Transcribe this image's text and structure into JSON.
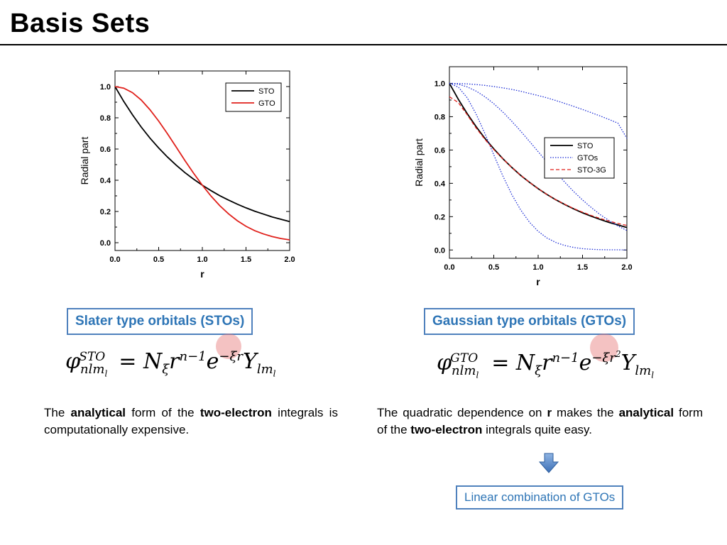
{
  "title": "Basis Sets",
  "colors": {
    "sto": "#000000",
    "gto_red": "#e0201b",
    "gtos_blue": "#1e2fd6",
    "sto3g": "#e0201b",
    "accent": "#2e75b6"
  },
  "chart_data": [
    {
      "type": "line",
      "xlabel": "r",
      "ylabel": "Radial part",
      "xlim": [
        0.0,
        2.0
      ],
      "ylim": [
        -0.05,
        1.1
      ],
      "xticks": [
        "0.0",
        "0.5",
        "1.0",
        "1.5",
        "2.0"
      ],
      "yticks": [
        "0.0",
        "0.2",
        "0.4",
        "0.6",
        "0.8",
        "1.0"
      ],
      "legend_position": "top-right",
      "series": [
        {
          "name": "STO",
          "style": "solid",
          "color": "#000000",
          "x": [
            0,
            0.1,
            0.2,
            0.3,
            0.4,
            0.5,
            0.6,
            0.7,
            0.8,
            0.9,
            1.0,
            1.1,
            1.2,
            1.3,
            1.4,
            1.5,
            1.6,
            1.7,
            1.8,
            1.9,
            2.0
          ],
          "y": [
            1.0,
            0.905,
            0.819,
            0.741,
            0.67,
            0.607,
            0.549,
            0.497,
            0.449,
            0.407,
            0.368,
            0.333,
            0.301,
            0.273,
            0.247,
            0.223,
            0.202,
            0.183,
            0.165,
            0.15,
            0.135
          ]
        },
        {
          "name": "GTO",
          "style": "solid",
          "color": "#e0201b",
          "x": [
            0,
            0.1,
            0.2,
            0.3,
            0.4,
            0.5,
            0.6,
            0.7,
            0.8,
            0.9,
            1.0,
            1.1,
            1.2,
            1.3,
            1.4,
            1.5,
            1.6,
            1.7,
            1.8,
            1.9,
            2.0
          ],
          "y": [
            1.0,
            0.99,
            0.961,
            0.914,
            0.852,
            0.779,
            0.698,
            0.613,
            0.527,
            0.445,
            0.368,
            0.298,
            0.237,
            0.185,
            0.141,
            0.105,
            0.077,
            0.056,
            0.039,
            0.027,
            0.018
          ]
        }
      ]
    },
    {
      "type": "line",
      "xlabel": "r",
      "ylabel": "Radial part",
      "xlim": [
        0.0,
        2.0
      ],
      "ylim": [
        -0.05,
        1.1
      ],
      "xticks": [
        "0.0",
        "0.5",
        "1.0",
        "1.5",
        "2.0"
      ],
      "yticks": [
        "0.0",
        "0.2",
        "0.4",
        "0.6",
        "0.8",
        "1.0"
      ],
      "legend_position": "center-right",
      "legend": [
        "STO",
        "GTOs",
        "STO-3G"
      ],
      "series": [
        {
          "name": "STO",
          "style": "solid",
          "color": "#000000",
          "x": [
            0,
            0.1,
            0.2,
            0.3,
            0.4,
            0.5,
            0.6,
            0.7,
            0.8,
            0.9,
            1.0,
            1.1,
            1.2,
            1.3,
            1.4,
            1.5,
            1.6,
            1.7,
            1.8,
            1.9,
            2.0
          ],
          "y": [
            1.0,
            0.905,
            0.819,
            0.741,
            0.67,
            0.607,
            0.549,
            0.497,
            0.449,
            0.407,
            0.368,
            0.333,
            0.301,
            0.273,
            0.247,
            0.223,
            0.202,
            0.183,
            0.165,
            0.15,
            0.135
          ]
        },
        {
          "name": "GTOs",
          "style": "dotted",
          "color": "#1e2fd6",
          "x": [
            0,
            0.1,
            0.2,
            0.3,
            0.4,
            0.5,
            0.6,
            0.7,
            0.8,
            0.9,
            1.0,
            1.1,
            1.2,
            1.3,
            1.4,
            1.5,
            1.6,
            1.7,
            1.8,
            1.9,
            2.0
          ],
          "y": [
            1.0,
            0.978,
            0.914,
            0.817,
            0.699,
            0.571,
            0.447,
            0.336,
            0.243,
            0.168,
            0.112,
            0.072,
            0.045,
            0.027,
            0.015,
            0.008,
            0.004,
            0.002,
            0.001,
            0.001,
            0.0
          ]
        },
        {
          "name": "GTOs",
          "style": "dotted",
          "color": "#1e2fd6",
          "x": [
            0,
            0.1,
            0.2,
            0.3,
            0.4,
            0.5,
            0.6,
            0.7,
            0.8,
            0.9,
            1.0,
            1.1,
            1.2,
            1.3,
            1.4,
            1.5,
            1.6,
            1.7,
            1.8,
            1.9,
            2.0
          ],
          "y": [
            1.0,
            0.995,
            0.979,
            0.954,
            0.92,
            0.878,
            0.829,
            0.774,
            0.715,
            0.653,
            0.59,
            0.527,
            0.466,
            0.407,
            0.351,
            0.3,
            0.254,
            0.212,
            0.176,
            0.144,
            0.117
          ]
        },
        {
          "name": "GTOs",
          "style": "dotted",
          "color": "#1e2fd6",
          "x": [
            0,
            0.1,
            0.2,
            0.3,
            0.4,
            0.5,
            0.6,
            0.7,
            0.8,
            0.9,
            1.0,
            1.1,
            1.2,
            1.3,
            1.4,
            1.5,
            1.6,
            1.7,
            1.8,
            1.9,
            2.0
          ],
          "y": [
            1.0,
            0.999,
            0.997,
            0.993,
            0.988,
            0.981,
            0.973,
            0.964,
            0.953,
            0.94,
            0.927,
            0.913,
            0.897,
            0.88,
            0.862,
            0.843,
            0.824,
            0.804,
            0.783,
            0.761,
            0.67
          ]
        },
        {
          "name": "STO-3G",
          "style": "dashed",
          "color": "#e0201b",
          "x": [
            0,
            0.1,
            0.2,
            0.3,
            0.4,
            0.5,
            0.6,
            0.7,
            0.8,
            0.9,
            1.0,
            1.1,
            1.2,
            1.3,
            1.4,
            1.5,
            1.6,
            1.7,
            1.8,
            1.9,
            2.0
          ],
          "y": [
            0.92,
            0.885,
            0.812,
            0.733,
            0.664,
            0.603,
            0.548,
            0.497,
            0.45,
            0.407,
            0.368,
            0.333,
            0.302,
            0.274,
            0.249,
            0.227,
            0.207,
            0.189,
            0.173,
            0.159,
            0.147
          ]
        }
      ]
    }
  ],
  "left": {
    "box_label": "Slater type orbitals (STOs)",
    "formula": {
      "phi": "φ",
      "sub": "nlm",
      "sub_l": "l",
      "sup": "STO",
      "eq": "= N",
      "n_sub": "ξ",
      "r": "r",
      "r_sup": "n−1",
      "e": "e",
      "e_sup": "−ξr",
      "Y": "Y",
      "Y_sub": "lm",
      "Y_sub_l": "l"
    },
    "text": {
      "p1": "The",
      "p2": "analytical",
      "p3": "form of the",
      "p4": "two-electron",
      "p5": "integrals is computationally expensive."
    }
  },
  "right": {
    "box_label": "Gaussian type orbitals (GTOs)",
    "formula": {
      "phi": "φ",
      "sub": "nlm",
      "sub_l": "l",
      "sup": "GTO",
      "eq": "= N",
      "n_sub": "ξ",
      "r": "r",
      "r_sup": "n−1",
      "e": "e",
      "e_sup": "−ξr",
      "e_sup2": "2",
      "Y": "Y",
      "Y_sub": "lm",
      "Y_sub_l": "l"
    },
    "text": {
      "p1": "The quadratic dependence on",
      "p2": "r",
      "p3": "makes the",
      "p4": "analytical",
      "p5": "form of the",
      "p6": "two-electron",
      "p7": "integrals quite easy."
    },
    "lc_label": "Linear combination of GTOs"
  }
}
